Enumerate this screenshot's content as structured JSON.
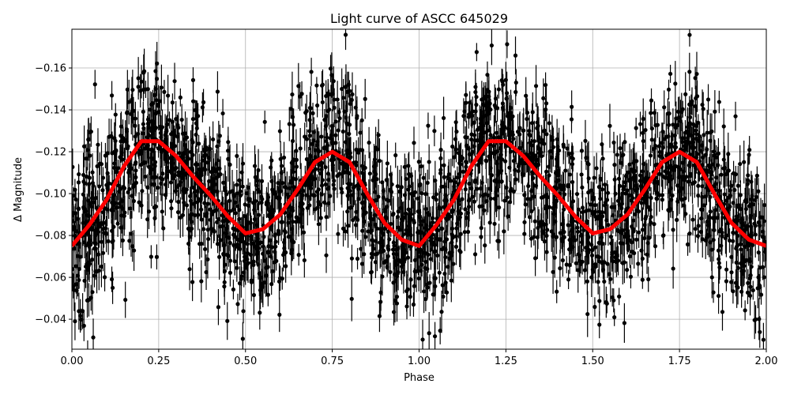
{
  "chart_data": {
    "type": "scatter",
    "title": "Light curve of ASCC 645029",
    "xlabel": "Phase",
    "ylabel": "Δ Magnitude",
    "xlim": [
      0,
      2
    ],
    "ylim": [
      -0.0257,
      -0.1785
    ],
    "y_inverted": true,
    "grid": true,
    "xticks": [
      0,
      0.25,
      0.5,
      0.75,
      1.0,
      1.25,
      1.5,
      1.75,
      2.0
    ],
    "xtick_labels": [
      "0.00",
      "0.25",
      "0.50",
      "0.75",
      "1.00",
      "1.25",
      "1.50",
      "1.75",
      "2.00"
    ],
    "yticks": [
      -0.04,
      -0.06,
      -0.08,
      -0.1,
      -0.12,
      -0.14,
      -0.16
    ],
    "ytick_labels": [
      "−0.04",
      "−0.06",
      "−0.08",
      "−0.10",
      "−0.12",
      "−0.14",
      "−0.16"
    ],
    "series": [
      {
        "kind": "errorbar-points",
        "color": "#000000"
      },
      {
        "kind": "binned-line",
        "color": "#ff0000",
        "x": [
          0,
          0.05,
          0.1,
          0.15,
          0.2,
          0.25,
          0.3,
          0.35,
          0.4,
          0.45,
          0.5,
          0.55,
          0.6,
          0.65,
          0.7,
          0.75,
          0.8,
          0.85,
          0.9,
          0.95,
          1.0,
          1.05,
          1.1,
          1.15,
          1.2,
          1.25,
          1.3,
          1.35,
          1.4,
          1.45,
          1.5,
          1.55,
          1.6,
          1.65,
          1.7,
          1.75,
          1.8,
          1.85,
          1.9,
          1.95,
          2.0
        ],
        "y": [
          -0.075,
          -0.085,
          -0.097,
          -0.113,
          -0.125,
          -0.125,
          -0.118,
          -0.108,
          -0.099,
          -0.089,
          -0.081,
          -0.083,
          -0.09,
          -0.102,
          -0.115,
          -0.12,
          -0.115,
          -0.1,
          -0.086,
          -0.078,
          -0.075,
          -0.085,
          -0.097,
          -0.113,
          -0.125,
          -0.125,
          -0.118,
          -0.108,
          -0.099,
          -0.089,
          -0.081,
          -0.083,
          -0.09,
          -0.102,
          -0.115,
          -0.12,
          -0.115,
          -0.1,
          -0.086,
          -0.078,
          -0.075
        ]
      }
    ]
  }
}
